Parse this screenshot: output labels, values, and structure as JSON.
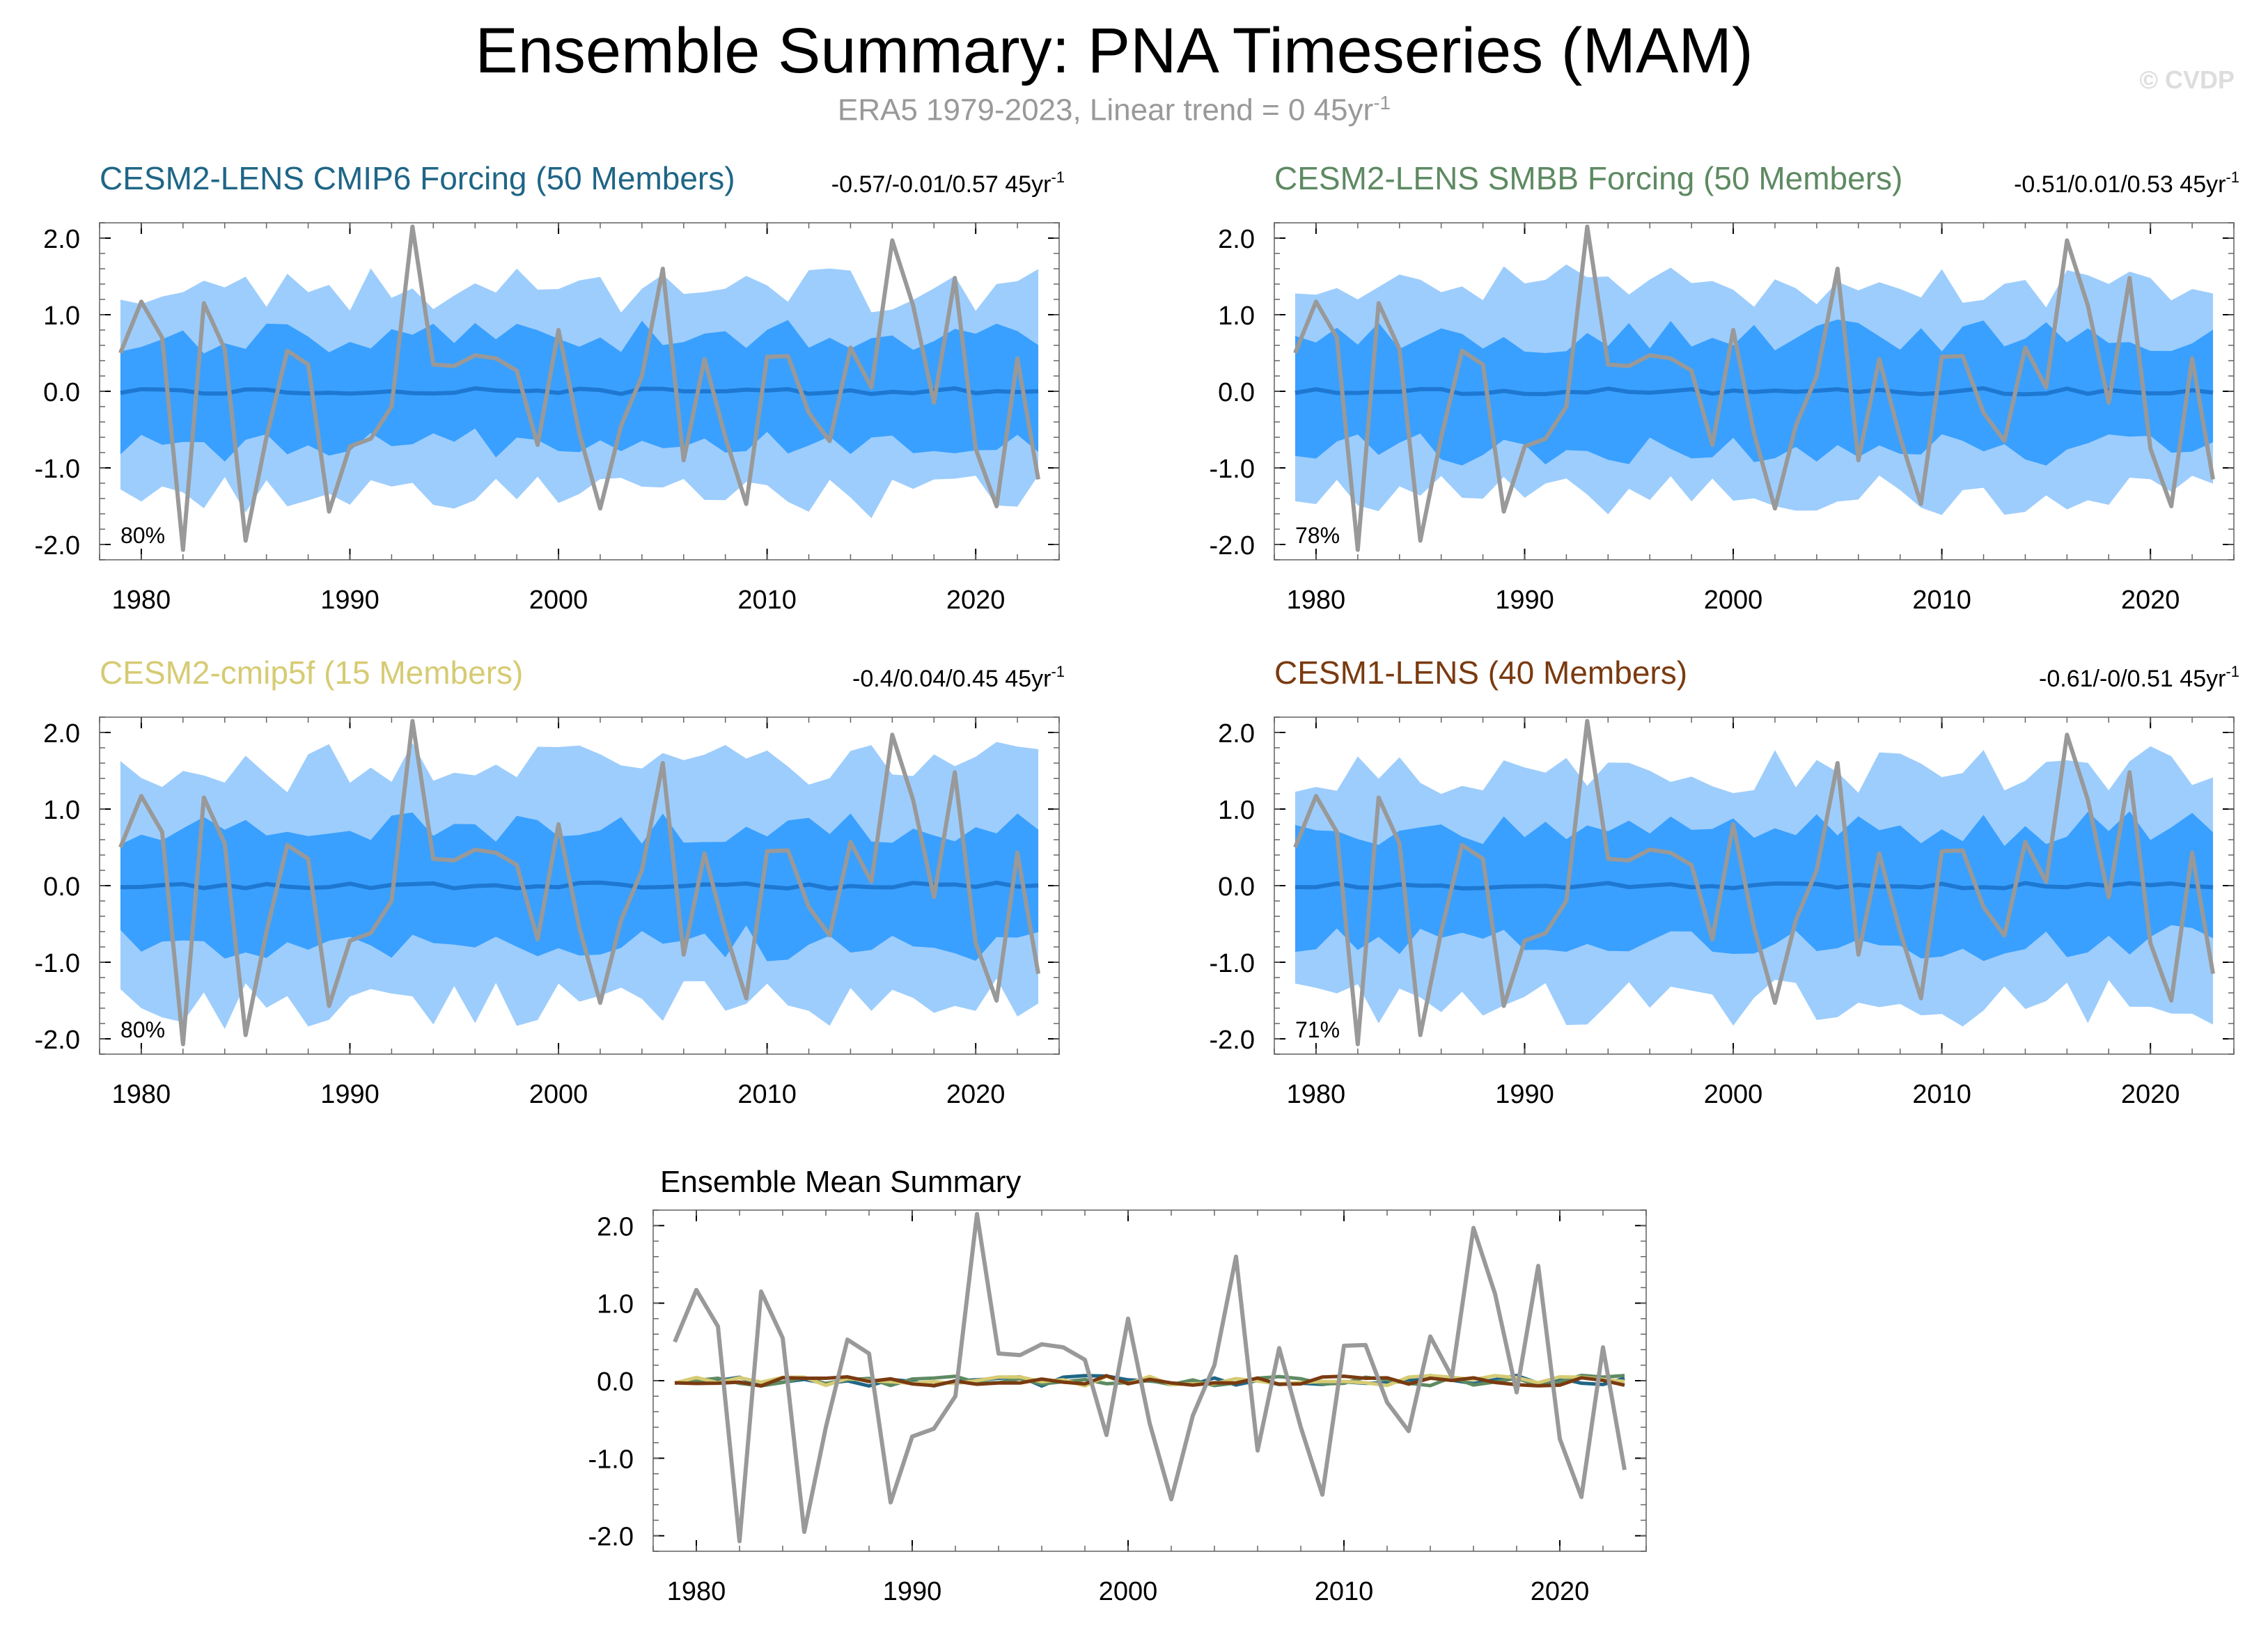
{
  "title": "Ensemble Summary: PNA Timeseries (MAM)",
  "subtitle": "ERA5 1979-2023, Linear trend = 0 45yr",
  "subtitle_sup": "-1",
  "watermark": "© CVDP",
  "colors": {
    "obs": "#999999",
    "band_outer": "#9dcdfc",
    "band_inner": "#39a0ff",
    "ens_mean": "#1e78d2",
    "axis": "#000000"
  },
  "chart_data": [
    {
      "type": "area",
      "panel": "top-left",
      "title": "CESM2-LENS CMIP6 Forcing (50 Members)",
      "title_color": "#1f6687",
      "trend_text": "-0.57/-0.01/0.57 45yr",
      "trend_sup": "-1",
      "percent_label": "80%",
      "seed": 11,
      "outer_amp": 1.25,
      "inner_amp": 0.68,
      "xlim": [
        1978,
        2024
      ],
      "ylim": [
        -2.2,
        2.2
      ],
      "xticks": [
        "1980",
        "1990",
        "2000",
        "2010",
        "2020"
      ],
      "yticks": [
        "2.0",
        "1.0",
        "0.0",
        "-1.0",
        "-2.0"
      ]
    },
    {
      "type": "area",
      "panel": "top-right",
      "title": "CESM2-LENS SMBB Forcing (50 Members)",
      "title_color": "#5e8a62",
      "trend_text": "-0.51/0.01/0.53 45yr",
      "trend_sup": "-1",
      "percent_label": "78%",
      "seed": 23,
      "outer_amp": 1.28,
      "inner_amp": 0.7,
      "xlim": [
        1978,
        2024
      ],
      "ylim": [
        -2.2,
        2.2
      ],
      "xticks": [
        "1980",
        "1990",
        "2000",
        "2010",
        "2020"
      ],
      "yticks": [
        "2.0",
        "1.0",
        "0.0",
        "-1.0",
        "-2.0"
      ]
    },
    {
      "type": "area",
      "panel": "middle-left",
      "title": "CESM2-cmip5f (15 Members)",
      "title_color": "#d6cb73",
      "trend_text": "-0.4/0.04/0.45 45yr",
      "trend_sup": "-1",
      "percent_label": "80%",
      "seed": 37,
      "outer_amp": 1.45,
      "inner_amp": 0.72,
      "xlim": [
        1978,
        2024
      ],
      "ylim": [
        -2.2,
        2.2
      ],
      "xticks": [
        "1980",
        "1990",
        "2000",
        "2010",
        "2020"
      ],
      "yticks": [
        "2.0",
        "1.0",
        "0.0",
        "-1.0",
        "-2.0"
      ]
    },
    {
      "type": "area",
      "panel": "middle-right",
      "title": "CESM1-LENS (40 Members)",
      "title_color": "#7a3a10",
      "trend_text": "-0.61/-0/0.51 45yr",
      "trend_sup": "-1",
      "percent_label": "71%",
      "seed": 53,
      "outer_amp": 1.4,
      "inner_amp": 0.72,
      "xlim": [
        1978,
        2024
      ],
      "ylim": [
        -2.2,
        2.2
      ],
      "xticks": [
        "1980",
        "1990",
        "2000",
        "2010",
        "2020"
      ],
      "yticks": [
        "2.0",
        "1.0",
        "0.0",
        "-1.0",
        "-2.0"
      ]
    },
    {
      "type": "line",
      "panel": "bottom-center",
      "title": "Ensemble Mean Summary",
      "title_color": "#000000",
      "xlim": [
        1978,
        2024
      ],
      "ylim": [
        -2.2,
        2.2
      ],
      "xticks": [
        "1980",
        "1990",
        "2000",
        "2010",
        "2020"
      ],
      "yticks": [
        "2.0",
        "1.0",
        "0.0",
        "-1.0",
        "-2.0"
      ],
      "series": [
        {
          "name": "CESM2-LENS CMIP6 Forcing",
          "color": "#1f6687",
          "seed": 11
        },
        {
          "name": "CESM2-LENS SMBB Forcing",
          "color": "#5e8a62",
          "seed": 23
        },
        {
          "name": "CESM2-cmip5f",
          "color": "#d6cb73",
          "seed": 37
        },
        {
          "name": "CESM1-LENS",
          "color": "#7a3a10",
          "seed": 53
        }
      ]
    }
  ],
  "observed": {
    "name": "ERA5",
    "years": [
      1979,
      1980,
      1981,
      1982,
      1983,
      1984,
      1985,
      1986,
      1987,
      1988,
      1989,
      1990,
      1991,
      1992,
      1993,
      1994,
      1995,
      1996,
      1997,
      1998,
      1999,
      2000,
      2001,
      2002,
      2003,
      2004,
      2005,
      2006,
      2007,
      2008,
      2009,
      2010,
      2011,
      2012,
      2013,
      2014,
      2015,
      2016,
      2017,
      2018,
      2019,
      2020,
      2021,
      2022,
      2023
    ],
    "values": [
      0.5,
      1.17,
      0.7,
      -2.07,
      1.15,
      0.55,
      -1.95,
      -0.6,
      0.53,
      0.35,
      -1.57,
      -0.72,
      -0.62,
      -0.2,
      2.15,
      0.35,
      0.33,
      0.47,
      0.43,
      0.27,
      -0.7,
      0.8,
      -0.55,
      -1.53,
      -0.45,
      0.2,
      1.6,
      -0.9,
      0.42,
      -0.6,
      -1.47,
      0.45,
      0.46,
      -0.28,
      -0.65,
      0.57,
      0.05,
      1.97,
      1.12,
      -0.15,
      1.48,
      -0.75,
      -1.5,
      0.43,
      -1.15
    ]
  }
}
